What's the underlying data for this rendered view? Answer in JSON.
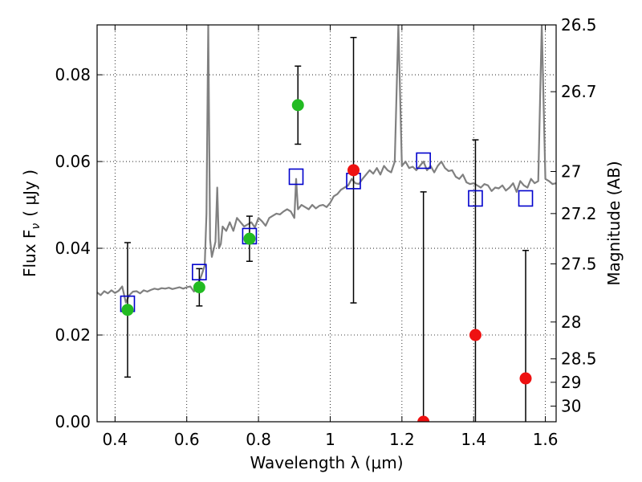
{
  "chart_data": {
    "type": "scatter",
    "xlabel": "Wavelength  λ (μm)",
    "ylabel": "Flux  F",
    "ylabel_sub": "ν",
    "ylabel_unit": "( μJy )",
    "ylabel_right": "Magnitude (AB)",
    "xlim": [
      0.35,
      1.63
    ],
    "ylim": [
      0.0,
      0.0915
    ],
    "xticks": [
      0.4,
      0.6,
      0.8,
      1.0,
      1.2,
      1.4,
      1.6
    ],
    "xtick_labels": [
      "0.4",
      "0.6",
      "0.8",
      "1",
      "1.2",
      "1.4",
      "1.6"
    ],
    "yticks": [
      0.0,
      0.02,
      0.04,
      0.06,
      0.08
    ],
    "ytick_labels": [
      "0.00",
      "0.02",
      "0.04",
      "0.06",
      "0.08"
    ],
    "right_ticks": [
      {
        "label": "26.5",
        "flux": 0.0915
      },
      {
        "label": "26.7",
        "flux": 0.0761
      },
      {
        "label": "27",
        "flux": 0.0577
      },
      {
        "label": "27.2",
        "flux": 0.048
      },
      {
        "label": "27.5",
        "flux": 0.0364
      },
      {
        "label": "28",
        "flux": 0.023
      },
      {
        "label": "28.5",
        "flux": 0.0145
      },
      {
        "label": "29",
        "flux": 0.0091
      },
      {
        "label": "30",
        "flux": 0.0036
      }
    ],
    "grid": true,
    "spectrum": {
      "color": "#808080",
      "x": [
        0.35,
        0.36,
        0.37,
        0.38,
        0.39,
        0.4,
        0.41,
        0.42,
        0.43,
        0.44,
        0.45,
        0.46,
        0.47,
        0.48,
        0.49,
        0.5,
        0.51,
        0.52,
        0.53,
        0.54,
        0.55,
        0.56,
        0.57,
        0.58,
        0.59,
        0.6,
        0.61,
        0.62,
        0.63,
        0.64,
        0.65,
        0.655,
        0.66,
        0.665,
        0.67,
        0.68,
        0.685,
        0.69,
        0.695,
        0.7,
        0.71,
        0.72,
        0.73,
        0.74,
        0.75,
        0.76,
        0.77,
        0.78,
        0.79,
        0.8,
        0.81,
        0.82,
        0.83,
        0.84,
        0.85,
        0.86,
        0.87,
        0.88,
        0.89,
        0.9,
        0.905,
        0.91,
        0.92,
        0.93,
        0.94,
        0.95,
        0.96,
        0.97,
        0.98,
        0.99,
        1.0,
        1.01,
        1.02,
        1.03,
        1.04,
        1.05,
        1.06,
        1.07,
        1.08,
        1.09,
        1.1,
        1.11,
        1.12,
        1.13,
        1.14,
        1.15,
        1.16,
        1.17,
        1.18,
        1.19,
        1.2,
        1.21,
        1.22,
        1.23,
        1.24,
        1.25,
        1.26,
        1.27,
        1.28,
        1.29,
        1.3,
        1.31,
        1.32,
        1.33,
        1.34,
        1.35,
        1.36,
        1.37,
        1.38,
        1.39,
        1.4,
        1.41,
        1.42,
        1.43,
        1.44,
        1.45,
        1.46,
        1.47,
        1.48,
        1.49,
        1.5,
        1.51,
        1.52,
        1.53,
        1.54,
        1.55,
        1.56,
        1.57,
        1.58,
        1.59,
        1.6,
        1.61,
        1.62,
        1.63
      ],
      "y": [
        0.0298,
        0.0292,
        0.0301,
        0.0296,
        0.0303,
        0.0297,
        0.0302,
        0.0312,
        0.0275,
        0.0292,
        0.03,
        0.0301,
        0.0296,
        0.0303,
        0.03,
        0.0304,
        0.0307,
        0.0305,
        0.0308,
        0.0307,
        0.0309,
        0.0306,
        0.0308,
        0.031,
        0.0307,
        0.031,
        0.0312,
        0.03,
        0.0315,
        0.0335,
        0.036,
        0.048,
        0.0915,
        0.042,
        0.038,
        0.0415,
        0.054,
        0.04,
        0.041,
        0.045,
        0.044,
        0.046,
        0.044,
        0.047,
        0.046,
        0.045,
        0.0455,
        0.046,
        0.0448,
        0.047,
        0.0462,
        0.0452,
        0.047,
        0.0475,
        0.048,
        0.0478,
        0.0485,
        0.049,
        0.0485,
        0.047,
        0.056,
        0.049,
        0.05,
        0.0495,
        0.049,
        0.05,
        0.0492,
        0.0498,
        0.05,
        0.0495,
        0.0505,
        0.052,
        0.0525,
        0.0535,
        0.054,
        0.0545,
        0.056,
        0.055,
        0.0548,
        0.056,
        0.057,
        0.058,
        0.0572,
        0.0585,
        0.057,
        0.059,
        0.058,
        0.0575,
        0.06,
        0.0915,
        0.059,
        0.06,
        0.0585,
        0.0588,
        0.058,
        0.059,
        0.06,
        0.058,
        0.059,
        0.0575,
        0.059,
        0.06,
        0.0585,
        0.0578,
        0.058,
        0.0565,
        0.056,
        0.057,
        0.0552,
        0.0548,
        0.055,
        0.0545,
        0.054,
        0.0548,
        0.0545,
        0.0532,
        0.054,
        0.0538,
        0.0545,
        0.0533,
        0.054,
        0.055,
        0.053,
        0.0555,
        0.0545,
        0.054,
        0.056,
        0.055,
        0.0555,
        0.0915,
        0.056,
        0.0555,
        0.0548,
        0.055
      ]
    },
    "model_points": {
      "marker": "open-square",
      "color": "#0000cc",
      "x": [
        0.435,
        0.635,
        0.775,
        0.905,
        1.065,
        1.26,
        1.405,
        1.545
      ],
      "y": [
        0.0272,
        0.0345,
        0.0428,
        0.0565,
        0.0555,
        0.0602,
        0.0515,
        0.0515
      ]
    },
    "detections": {
      "marker": "filled-circle",
      "color": "#22bb22",
      "x": [
        0.435,
        0.635,
        0.775,
        0.91
      ],
      "y": [
        0.0258,
        0.031,
        0.0422,
        0.073
      ],
      "err_lo": [
        0.0155,
        0.0043,
        0.0052,
        0.009
      ],
      "err_hi": [
        0.0155,
        0.0043,
        0.0052,
        0.009
      ]
    },
    "non_detections": {
      "marker": "filled-circle",
      "color": "#ee1111",
      "x": [
        1.065,
        1.26,
        1.405,
        1.545
      ],
      "y": [
        0.058,
        0.0,
        0.02,
        0.01
      ],
      "err_lo": [
        0.0306,
        0.0,
        0.02,
        0.01
      ],
      "err_hi": [
        0.0306,
        0.053,
        0.045,
        0.0295
      ]
    }
  }
}
